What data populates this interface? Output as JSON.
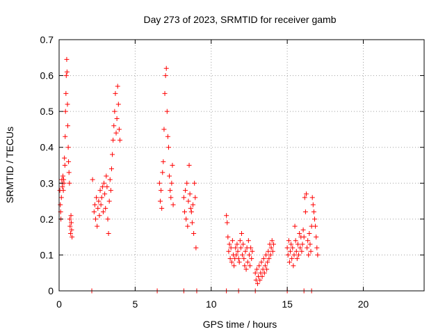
{
  "chart_data": {
    "type": "scatter",
    "title": "Day 273 of 2023, SRMTID for receiver gamb",
    "xlabel": "GPS time / hours",
    "ylabel": "SRMTID / TECUs",
    "xlim": [
      0,
      24
    ],
    "ylim": [
      0,
      0.7
    ],
    "x_ticks": [
      0,
      5,
      10,
      15,
      20
    ],
    "x_tick_labels": [
      "0",
      "5",
      "10",
      "15",
      "20"
    ],
    "y_ticks": [
      0,
      0.1,
      0.2,
      0.3,
      0.4,
      0.5,
      0.6,
      0.7
    ],
    "y_tick_labels": [
      "0",
      "0.1",
      "0.2",
      "0.3",
      "0.4",
      "0.5",
      "0.6",
      "0.7"
    ],
    "grid": true,
    "marker": "+",
    "color": "#ff0000",
    "series": [
      {
        "name": "SRMTID",
        "points": [
          [
            0.05,
            0.28
          ],
          [
            0.08,
            0.24
          ],
          [
            0.1,
            0.22
          ],
          [
            0.12,
            0.2
          ],
          [
            0.15,
            0.26
          ],
          [
            0.18,
            0.31
          ],
          [
            0.2,
            0.3
          ],
          [
            0.22,
            0.29
          ],
          [
            0.25,
            0.32
          ],
          [
            0.28,
            0.28
          ],
          [
            0.3,
            0.31
          ],
          [
            0.32,
            0.3
          ],
          [
            0.35,
            0.37
          ],
          [
            0.38,
            0.35
          ],
          [
            0.4,
            0.43
          ],
          [
            0.42,
            0.5
          ],
          [
            0.45,
            0.55
          ],
          [
            0.47,
            0.6
          ],
          [
            0.5,
            0.645
          ],
          [
            0.52,
            0.61
          ],
          [
            0.55,
            0.52
          ],
          [
            0.57,
            0.46
          ],
          [
            0.6,
            0.4
          ],
          [
            0.62,
            0.36
          ],
          [
            0.65,
            0.33
          ],
          [
            0.68,
            0.3
          ],
          [
            0.7,
            0.2
          ],
          [
            0.72,
            0.18
          ],
          [
            0.75,
            0.16
          ],
          [
            0.78,
            0.21
          ],
          [
            0.8,
            0.19
          ],
          [
            0.82,
            0.17
          ],
          [
            0.85,
            0.15
          ],
          [
            2.2,
            0.31
          ],
          [
            2.3,
            0.22
          ],
          [
            2.35,
            0.24
          ],
          [
            2.4,
            0.2
          ],
          [
            2.45,
            0.26
          ],
          [
            2.5,
            0.18
          ],
          [
            2.55,
            0.23
          ],
          [
            2.6,
            0.25
          ],
          [
            2.65,
            0.21
          ],
          [
            2.7,
            0.28
          ],
          [
            2.75,
            0.24
          ],
          [
            2.8,
            0.26
          ],
          [
            2.85,
            0.29
          ],
          [
            2.9,
            0.22
          ],
          [
            2.95,
            0.3
          ],
          [
            3.0,
            0.27
          ],
          [
            3.05,
            0.23
          ],
          [
            3.1,
            0.32
          ],
          [
            3.15,
            0.29
          ],
          [
            3.2,
            0.2
          ],
          [
            3.25,
            0.16
          ],
          [
            3.3,
            0.25
          ],
          [
            3.35,
            0.31
          ],
          [
            3.4,
            0.28
          ],
          [
            3.45,
            0.34
          ],
          [
            3.5,
            0.38
          ],
          [
            3.55,
            0.42
          ],
          [
            3.6,
            0.46
          ],
          [
            3.65,
            0.5
          ],
          [
            3.7,
            0.55
          ],
          [
            3.75,
            0.44
          ],
          [
            3.8,
            0.48
          ],
          [
            3.85,
            0.57
          ],
          [
            3.9,
            0.52
          ],
          [
            3.95,
            0.45
          ],
          [
            4.0,
            0.42
          ],
          [
            6.6,
            0.3
          ],
          [
            6.65,
            0.25
          ],
          [
            6.7,
            0.28
          ],
          [
            6.75,
            0.23
          ],
          [
            6.8,
            0.33
          ],
          [
            6.85,
            0.36
          ],
          [
            6.9,
            0.45
          ],
          [
            6.95,
            0.55
          ],
          [
            7.0,
            0.6
          ],
          [
            7.05,
            0.62
          ],
          [
            7.1,
            0.5
          ],
          [
            7.15,
            0.43
          ],
          [
            7.2,
            0.4
          ],
          [
            7.25,
            0.32
          ],
          [
            7.3,
            0.28
          ],
          [
            7.35,
            0.26
          ],
          [
            7.4,
            0.3
          ],
          [
            7.45,
            0.35
          ],
          [
            7.5,
            0.24
          ],
          [
            8.2,
            0.26
          ],
          [
            8.25,
            0.22
          ],
          [
            8.3,
            0.28
          ],
          [
            8.35,
            0.2
          ],
          [
            8.4,
            0.3
          ],
          [
            8.45,
            0.18
          ],
          [
            8.5,
            0.25
          ],
          [
            8.55,
            0.35
          ],
          [
            8.6,
            0.27
          ],
          [
            8.65,
            0.23
          ],
          [
            8.7,
            0.22
          ],
          [
            8.75,
            0.19
          ],
          [
            8.8,
            0.24
          ],
          [
            8.85,
            0.16
          ],
          [
            8.9,
            0.3
          ],
          [
            8.95,
            0.26
          ],
          [
            9.0,
            0.12
          ],
          [
            11.0,
            0.21
          ],
          [
            11.05,
            0.19
          ],
          [
            11.1,
            0.15
          ],
          [
            11.15,
            0.11
          ],
          [
            11.2,
            0.13
          ],
          [
            11.25,
            0.09
          ],
          [
            11.3,
            0.12
          ],
          [
            11.35,
            0.08
          ],
          [
            11.4,
            0.14
          ],
          [
            11.45,
            0.1
          ],
          [
            11.5,
            0.07
          ],
          [
            11.55,
            0.09
          ],
          [
            11.6,
            0.12
          ],
          [
            11.65,
            0.1
          ],
          [
            11.7,
            0.13
          ],
          [
            11.75,
            0.11
          ],
          [
            11.8,
            0.09
          ],
          [
            11.85,
            0.08
          ],
          [
            11.9,
            0.14
          ],
          [
            11.95,
            0.12
          ],
          [
            12.0,
            0.16
          ],
          [
            12.05,
            0.1
          ],
          [
            12.1,
            0.13
          ],
          [
            12.15,
            0.09
          ],
          [
            12.2,
            0.07
          ],
          [
            12.25,
            0.11
          ],
          [
            12.3,
            0.06
          ],
          [
            12.35,
            0.12
          ],
          [
            12.4,
            0.08
          ],
          [
            12.45,
            0.14
          ],
          [
            12.5,
            0.1
          ],
          [
            12.55,
            0.07
          ],
          [
            12.6,
            0.12
          ],
          [
            12.65,
            0.09
          ],
          [
            12.7,
            0.11
          ],
          [
            12.9,
            0.05
          ],
          [
            12.95,
            0.03
          ],
          [
            13.0,
            0.06
          ],
          [
            13.05,
            0.02
          ],
          [
            13.1,
            0.04
          ],
          [
            13.15,
            0.07
          ],
          [
            13.2,
            0.03
          ],
          [
            13.25,
            0.05
          ],
          [
            13.3,
            0.08
          ],
          [
            13.35,
            0.04
          ],
          [
            13.4,
            0.06
          ],
          [
            13.45,
            0.09
          ],
          [
            13.5,
            0.05
          ],
          [
            13.55,
            0.07
          ],
          [
            13.6,
            0.1
          ],
          [
            13.65,
            0.06
          ],
          [
            13.7,
            0.08
          ],
          [
            13.75,
            0.11
          ],
          [
            13.8,
            0.09
          ],
          [
            13.85,
            0.13
          ],
          [
            13.9,
            0.1
          ],
          [
            13.95,
            0.12
          ],
          [
            14.0,
            0.14
          ],
          [
            14.05,
            0.11
          ],
          [
            14.1,
            0.13
          ],
          [
            15.0,
            0.12
          ],
          [
            15.05,
            0.1
          ],
          [
            15.1,
            0.14
          ],
          [
            15.15,
            0.08
          ],
          [
            15.2,
            0.11
          ],
          [
            15.25,
            0.13
          ],
          [
            15.3,
            0.09
          ],
          [
            15.35,
            0.12
          ],
          [
            15.4,
            0.07
          ],
          [
            15.45,
            0.1
          ],
          [
            15.5,
            0.18
          ],
          [
            15.55,
            0.14
          ],
          [
            15.6,
            0.11
          ],
          [
            15.65,
            0.09
          ],
          [
            15.7,
            0.13
          ],
          [
            15.75,
            0.1
          ],
          [
            15.8,
            0.16
          ],
          [
            15.85,
            0.12
          ],
          [
            15.9,
            0.15
          ],
          [
            15.95,
            0.11
          ],
          [
            16.0,
            0.13
          ],
          [
            16.05,
            0.17
          ],
          [
            16.1,
            0.15
          ],
          [
            16.15,
            0.26
          ],
          [
            16.2,
            0.22
          ],
          [
            16.25,
            0.27
          ],
          [
            16.3,
            0.12
          ],
          [
            16.35,
            0.14
          ],
          [
            16.4,
            0.1
          ],
          [
            16.45,
            0.16
          ],
          [
            16.5,
            0.13
          ],
          [
            16.55,
            0.11
          ],
          [
            16.6,
            0.18
          ],
          [
            16.65,
            0.26
          ],
          [
            16.7,
            0.24
          ],
          [
            16.75,
            0.22
          ],
          [
            16.8,
            0.2
          ],
          [
            16.85,
            0.18
          ],
          [
            16.9,
            0.15
          ],
          [
            16.95,
            0.12
          ],
          [
            17.0,
            0.1
          ]
        ],
        "zero_points": [
          2.15,
          6.45,
          8.2,
          9.05,
          11.0,
          11.8,
          12.9,
          15.0,
          16.1,
          16.6
        ]
      }
    ]
  }
}
